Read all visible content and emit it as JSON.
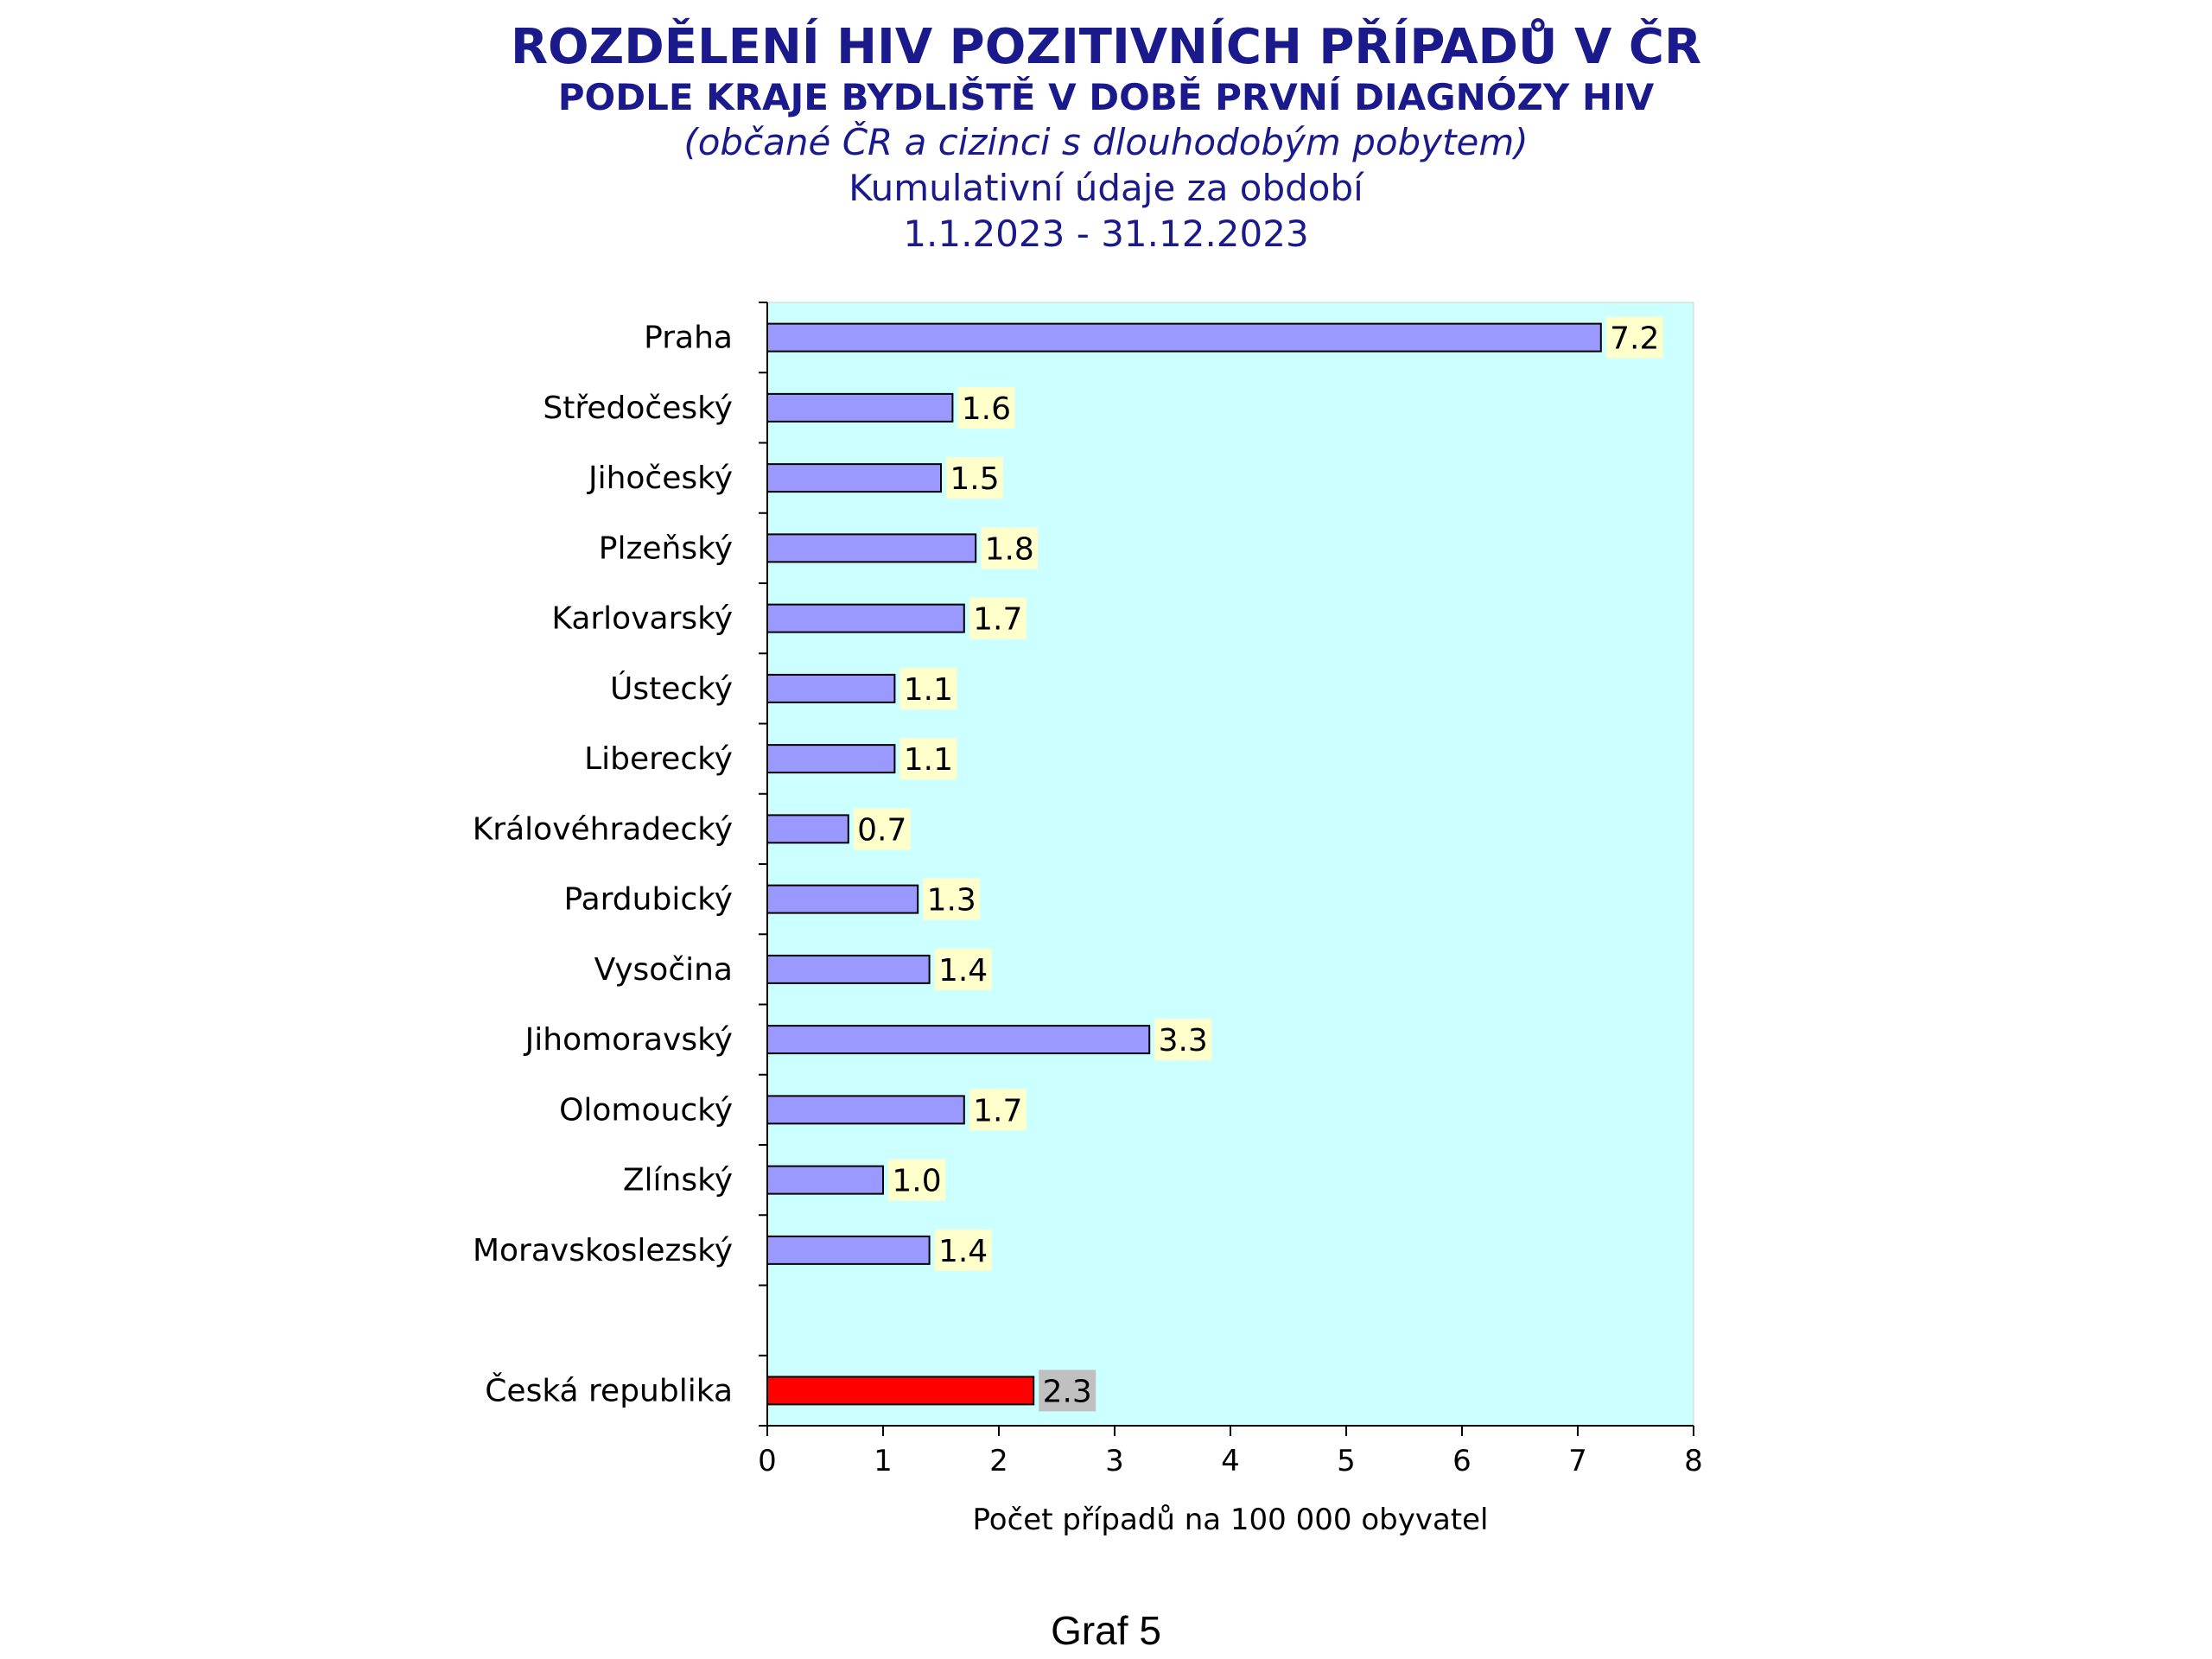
{
  "header": {
    "title": "ROZDĚLENÍ HIV POZITIVNÍCH PŘÍPADŮ V ČR",
    "subtitle": "PODLE KRAJE BYDLIŠTĚ V DOBĚ PRVNÍ DIAGNÓZY HIV",
    "note": "(občané ČR a cizinci s dlouhodobým pobytem)",
    "period_label": "Kumulativní údaje za období",
    "period": "1.1.2023 - 31.12.2023"
  },
  "caption": "Graf 5",
  "colors": {
    "plot_bg": "#ccffff",
    "bar": "#9999ff",
    "bar_total": "#ff0000",
    "label_bg": "#ffffcc",
    "label_bg_total": "#c0c0c0"
  },
  "chart_data": {
    "type": "bar",
    "orientation": "horizontal",
    "categories": [
      "Praha",
      "Středočeský",
      "Jihočeský",
      "Plzeňský",
      "Karlovarský",
      "Ústecký",
      "Liberecký",
      "Královéhradecký",
      "Pardubický",
      "Vysočina",
      "Jihomoravský",
      "Olomoucký",
      "Zlínský",
      "Moravskoslezský",
      "",
      "Česká republika"
    ],
    "values": [
      7.2,
      1.6,
      1.5,
      1.8,
      1.7,
      1.1,
      1.1,
      0.7,
      1.3,
      1.4,
      3.3,
      1.7,
      1.0,
      1.4,
      null,
      2.3
    ],
    "value_labels": [
      "7.2",
      "1.6",
      "1.5",
      "1.8",
      "1.7",
      "1.1",
      "1.1",
      "0.7",
      "1.3",
      "1.4",
      "3.3",
      "1.7",
      "1.0",
      "1.4",
      "",
      "2.3"
    ],
    "highlight_category": "Česká republika",
    "xlabel": "Počet případů na 100 000 obyvatel",
    "xlim": [
      0,
      8
    ],
    "xticks": [
      "0",
      "1",
      "2",
      "3",
      "4",
      "5",
      "6",
      "7",
      "8"
    ],
    "grid": false,
    "legend": false
  }
}
